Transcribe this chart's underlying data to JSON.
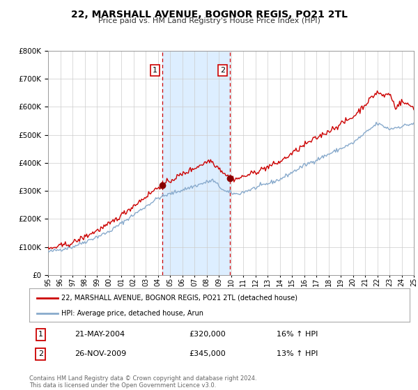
{
  "title": "22, MARSHALL AVENUE, BOGNOR REGIS, PO21 2TL",
  "subtitle": "Price paid vs. HM Land Registry's House Price Index (HPI)",
  "ylim": [
    0,
    800000
  ],
  "xlim_start": 1995,
  "xlim_end": 2025,
  "transaction1_x": 2004.38,
  "transaction2_x": 2009.9,
  "transaction1_price": 320000,
  "transaction2_price": 345000,
  "legend_line1": "22, MARSHALL AVENUE, BOGNOR REGIS, PO21 2TL (detached house)",
  "legend_line2": "HPI: Average price, detached house, Arun",
  "footer": "Contains HM Land Registry data © Crown copyright and database right 2024.\nThis data is licensed under the Open Government Licence v3.0.",
  "t1_date": "21-MAY-2004",
  "t1_price_str": "£320,000",
  "t1_hpi": "16% ↑ HPI",
  "t2_date": "26-NOV-2009",
  "t2_price_str": "£345,000",
  "t2_hpi": "13% ↑ HPI",
  "line_color_red": "#cc0000",
  "line_color_blue": "#88aacc",
  "shade_color": "#ddeeff",
  "background_color": "#ffffff",
  "grid_color": "#cccccc"
}
